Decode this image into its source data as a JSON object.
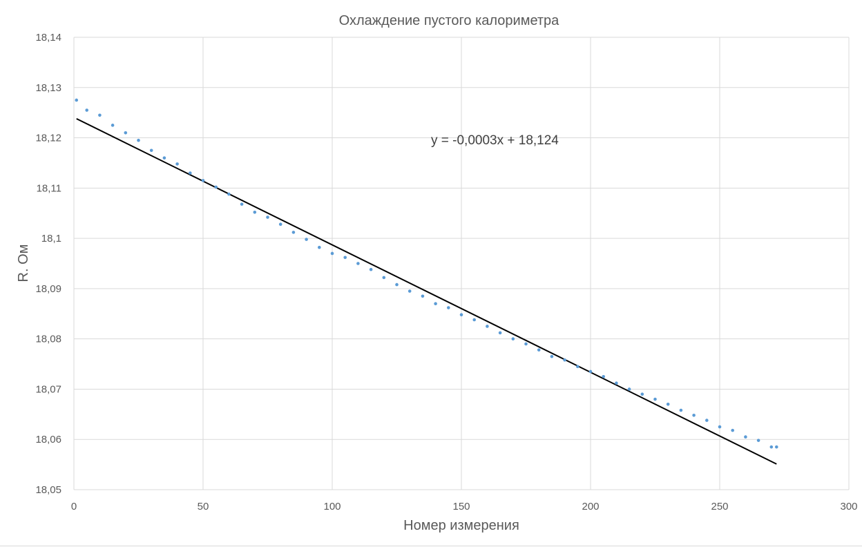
{
  "chart_data": {
    "type": "scatter",
    "title": "Охлаждение пустого калориметра",
    "xlabel": "Номер измерения",
    "ylabel": "R. Ом",
    "xlim": [
      0,
      300
    ],
    "ylim": [
      18.05,
      18.14
    ],
    "x_ticks": [
      "0",
      "50",
      "100",
      "150",
      "200",
      "250",
      "300"
    ],
    "y_ticks": [
      "18,05",
      "18,06",
      "18,07",
      "18,08",
      "18,09",
      "18,1",
      "18,11",
      "18,12",
      "18,13",
      "18,14"
    ],
    "grid": true,
    "point_color": "#5b9bd5",
    "trendline_color": "#000000",
    "trendline": {
      "equation_label": "y = -0,0003x + 18,124",
      "x": [
        1,
        272
      ],
      "y": [
        18.1238,
        18.0551
      ]
    },
    "series": [
      {
        "x": [
          1,
          5,
          10,
          15,
          20,
          25,
          30,
          35,
          40,
          45,
          50,
          55,
          60,
          65,
          70,
          75,
          80,
          85,
          90,
          95,
          100,
          105,
          110,
          115,
          120,
          125,
          130,
          135,
          140,
          145,
          150,
          155,
          160,
          165,
          170,
          175,
          180,
          185,
          190,
          195,
          200,
          205,
          210,
          215,
          220,
          225,
          230,
          235,
          240,
          245,
          250,
          255,
          260,
          265,
          270,
          272
        ],
        "y": [
          18.1275,
          18.1255,
          18.1245,
          18.1225,
          18.121,
          18.1195,
          18.1175,
          18.116,
          18.1148,
          18.113,
          18.1115,
          18.1102,
          18.1088,
          18.1068,
          18.1052,
          18.1042,
          18.1028,
          18.1012,
          18.0998,
          18.0982,
          18.097,
          18.0962,
          18.095,
          18.0938,
          18.0922,
          18.0908,
          18.0895,
          18.0885,
          18.087,
          18.0862,
          18.0848,
          18.0838,
          18.0825,
          18.0812,
          18.08,
          18.079,
          18.0778,
          18.0765,
          18.0758,
          18.0745,
          18.0735,
          18.0725,
          18.0712,
          18.07,
          18.069,
          18.068,
          18.067,
          18.0658,
          18.0648,
          18.0638,
          18.0625,
          18.0618,
          18.0605,
          18.0598,
          18.0585,
          18.0585
        ]
      }
    ]
  }
}
